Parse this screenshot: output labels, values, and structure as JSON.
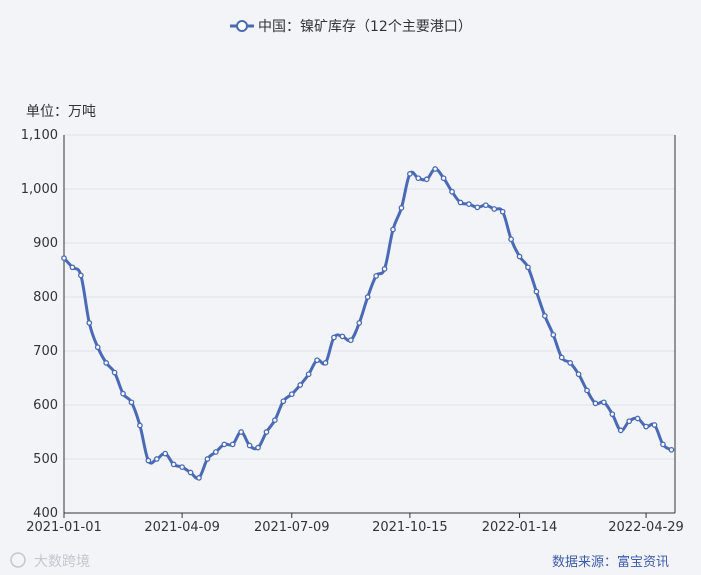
{
  "chart_data": {
    "type": "line",
    "series": [
      {
        "name": "中国：镍矿库存（12个主要港口）",
        "color": "#4a6ab5",
        "values": [
          [
            "2021-01-01",
            872
          ],
          [
            "2021-01-08",
            855
          ],
          [
            "2021-01-15",
            840
          ],
          [
            "2021-01-22",
            752
          ],
          [
            "2021-01-29",
            707
          ],
          [
            "2021-02-05",
            678
          ],
          [
            "2021-02-12",
            660
          ],
          [
            "2021-02-19",
            621
          ],
          [
            "2021-02-26",
            605
          ],
          [
            "2021-03-05",
            562
          ],
          [
            "2021-03-12",
            497
          ],
          [
            "2021-03-19",
            500
          ],
          [
            "2021-03-26",
            510
          ],
          [
            "2021-04-02",
            490
          ],
          [
            "2021-04-09",
            485
          ],
          [
            "2021-04-16",
            475
          ],
          [
            "2021-04-23",
            465
          ],
          [
            "2021-04-30",
            500
          ],
          [
            "2021-05-07",
            513
          ],
          [
            "2021-05-14",
            527
          ],
          [
            "2021-05-21",
            527
          ],
          [
            "2021-05-28",
            550
          ],
          [
            "2021-06-04",
            525
          ],
          [
            "2021-06-11",
            521
          ],
          [
            "2021-06-18",
            550
          ],
          [
            "2021-06-25",
            572
          ],
          [
            "2021-07-02",
            607
          ],
          [
            "2021-07-09",
            620
          ],
          [
            "2021-07-16",
            637
          ],
          [
            "2021-07-23",
            657
          ],
          [
            "2021-07-30",
            683
          ],
          [
            "2021-08-06",
            678
          ],
          [
            "2021-08-13",
            725
          ],
          [
            "2021-08-20",
            727
          ],
          [
            "2021-08-27",
            720
          ],
          [
            "2021-09-03",
            752
          ],
          [
            "2021-09-10",
            800
          ],
          [
            "2021-09-17",
            839
          ],
          [
            "2021-09-24",
            852
          ],
          [
            "2021-10-01",
            925
          ],
          [
            "2021-10-08",
            965
          ],
          [
            "2021-10-15",
            1028
          ],
          [
            "2021-10-22",
            1020
          ],
          [
            "2021-10-29",
            1018
          ],
          [
            "2021-11-05",
            1037
          ],
          [
            "2021-11-12",
            1020
          ],
          [
            "2021-11-19",
            995
          ],
          [
            "2021-11-26",
            975
          ],
          [
            "2021-12-03",
            972
          ],
          [
            "2021-12-10",
            966
          ],
          [
            "2021-12-17",
            970
          ],
          [
            "2021-12-24",
            963
          ],
          [
            "2021-12-31",
            958
          ],
          [
            "2022-01-07",
            907
          ],
          [
            "2022-01-14",
            875
          ],
          [
            "2022-01-21",
            855
          ],
          [
            "2022-01-28",
            810
          ],
          [
            "2022-02-04",
            765
          ],
          [
            "2022-02-11",
            730
          ],
          [
            "2022-02-18",
            688
          ],
          [
            "2022-02-25",
            678
          ],
          [
            "2022-03-04",
            657
          ],
          [
            "2022-03-11",
            627
          ],
          [
            "2022-03-18",
            603
          ],
          [
            "2022-03-25",
            605
          ],
          [
            "2022-04-01",
            583
          ],
          [
            "2022-04-08",
            553
          ],
          [
            "2022-04-15",
            570
          ],
          [
            "2022-04-22",
            575
          ],
          [
            "2022-04-29",
            560
          ],
          [
            "2022-05-06",
            563
          ],
          [
            "2022-05-13",
            527
          ],
          [
            "2022-05-20",
            517
          ]
        ]
      }
    ],
    "x_ticks": [
      "2021-01-01",
      "2021-04-09",
      "2021-07-09",
      "2021-10-15",
      "2022-01-14",
      "2022-04-29"
    ],
    "xlim": [
      "2021-01-01",
      "2022-05-23"
    ],
    "ylim": [
      400,
      1100
    ],
    "y_ticks": [
      400,
      500,
      600,
      700,
      800,
      900,
      1000,
      1100
    ],
    "y_tick_labels": [
      "400",
      "500",
      "600",
      "700",
      "800",
      "900",
      "1,000",
      "1,100"
    ],
    "ylabel": "单位：万吨",
    "grid": true,
    "legend_position": "top-center"
  },
  "source": "数据来源：富宝资讯",
  "watermark": "大数跨境"
}
